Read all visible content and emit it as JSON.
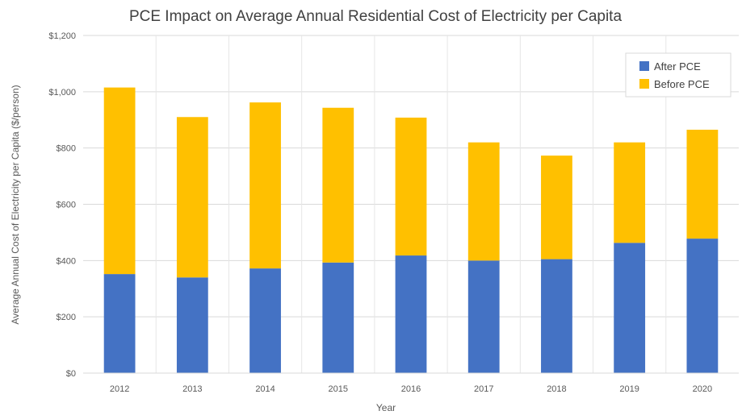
{
  "chart_data": {
    "type": "bar",
    "stacked": true,
    "title": "PCE Impact on Average Annual Residential Cost of Electricity per Capita",
    "xlabel": "Year",
    "ylabel": "Average Annual Cost of Electricity per Capita ($/person)",
    "categories": [
      "2012",
      "2013",
      "2014",
      "2015",
      "2016",
      "2017",
      "2018",
      "2019",
      "2020"
    ],
    "ylim": [
      0,
      1200
    ],
    "yticks": [
      0,
      200,
      400,
      600,
      800,
      1000,
      1200
    ],
    "ytick_labels": [
      "$0",
      "$200",
      "$400",
      "$600",
      "$800",
      "$1,000",
      "$1,200"
    ],
    "grid": true,
    "legend_position": "top-right",
    "series": [
      {
        "name": "After PCE",
        "color": "#4472C4",
        "values": [
          352,
          340,
          372,
          393,
          418,
          400,
          405,
          463,
          478
        ]
      },
      {
        "name": "Before PCE",
        "color": "#FFC000",
        "values": [
          663,
          570,
          590,
          550,
          490,
          420,
          368,
          357,
          387
        ]
      }
    ]
  }
}
